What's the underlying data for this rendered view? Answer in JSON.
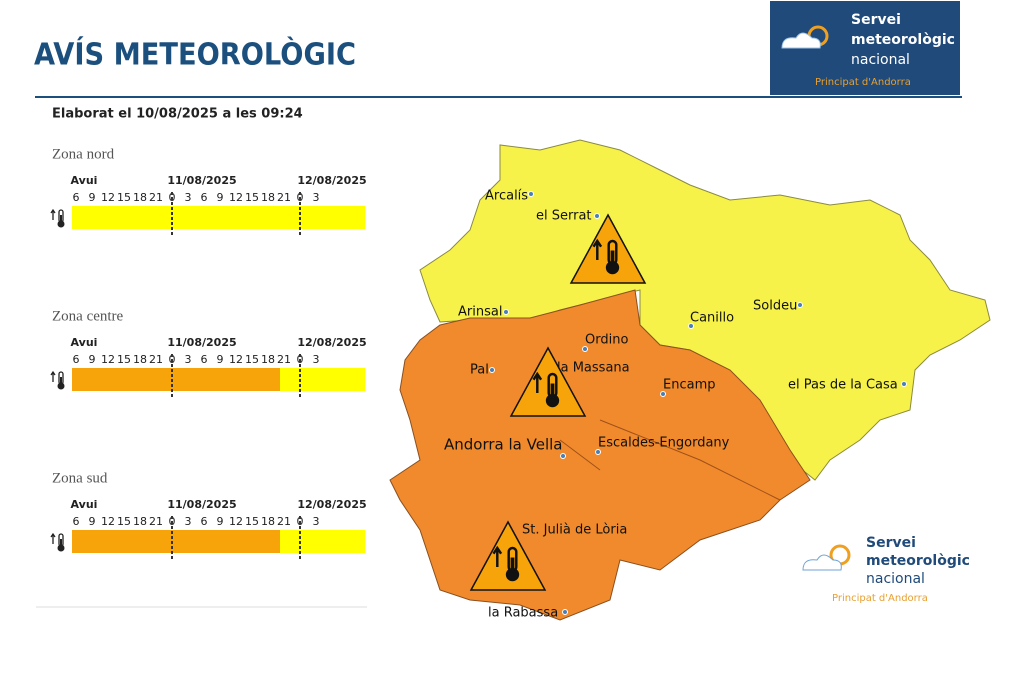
{
  "header": {
    "title": "AVÍS METEOROLÒGIC",
    "issued": "Elaborat el 10/08/2025 a les 09:24"
  },
  "logo": {
    "line1": "Servei",
    "line2": "meteorològic",
    "line3": "nacional",
    "subtitle": "Principat d'Andorra"
  },
  "timeline": {
    "days": [
      "Avui",
      "11/08/2025",
      "12/08/2025"
    ],
    "hours": [
      6,
      9,
      12,
      15,
      18,
      21,
      0,
      3,
      6,
      9,
      12,
      15,
      18,
      21,
      0,
      3
    ]
  },
  "zones": [
    {
      "name": "Zona nord",
      "segments": [
        {
          "color": "#ffff00",
          "hours": 55
        }
      ]
    },
    {
      "name": "Zona centre",
      "segments": [
        {
          "color": "#f7a30a",
          "hours": 39
        },
        {
          "color": "#ffff00",
          "hours": 16
        }
      ]
    },
    {
      "name": "Zona sud",
      "segments": [
        {
          "color": "#f7a30a",
          "hours": 39
        },
        {
          "color": "#ffff00",
          "hours": 16
        }
      ]
    }
  ],
  "map": {
    "places": [
      "Arcalís",
      "el Serrat",
      "Arinsal",
      "Soldeu",
      "Canillo",
      "Ordino",
      "la Massana",
      "Pal",
      "Encamp",
      "el Pas de la Casa",
      "Andorra la Vella",
      "Escaldes-Engordany",
      "St. Julià de Lòria",
      "la Rabassa"
    ]
  }
}
